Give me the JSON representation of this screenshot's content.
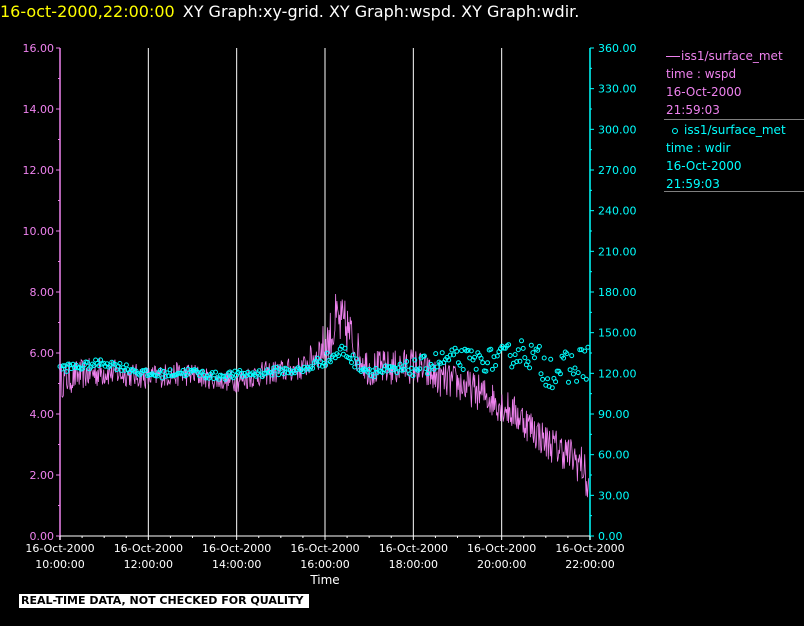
{
  "header": {
    "timestamp": "16-oct-2000,22:00:00",
    "titles": "XY Graph:xy-grid.  XY Graph:wspd.  XY Graph:wdir."
  },
  "legend": [
    {
      "marker": "line",
      "source": "iss1/surface_met",
      "variable": "time : wspd",
      "date": "16-Oct-2000",
      "time": "21:59:03",
      "color": "#ee82ee"
    },
    {
      "marker": "circle",
      "source": "iss1/surface_met",
      "variable": "time : wdir",
      "date": "16-Oct-2000",
      "time": "21:59:03",
      "color": "#00ffff"
    }
  ],
  "disclaimer": "REAL-TIME DATA, NOT CHECKED FOR QUALITY",
  "colors": {
    "left_axis": "#ee82ee",
    "right_axis": "#00ffff",
    "grid": "#ffffff",
    "text": "#ffffff"
  },
  "chart_data": {
    "type": "line",
    "xlabel": "Time",
    "xlim": [
      "16-Oct-2000 10:00:00",
      "16-Oct-2000 22:00:00"
    ],
    "x_ticks": [
      {
        "date": "16-Oct-2000",
        "time": "10:00:00"
      },
      {
        "date": "16-Oct-2000",
        "time": "12:00:00"
      },
      {
        "date": "16-Oct-2000",
        "time": "14:00:00"
      },
      {
        "date": "16-Oct-2000",
        "time": "16:00:00"
      },
      {
        "date": "16-Oct-2000",
        "time": "18:00:00"
      },
      {
        "date": "16-Oct-2000",
        "time": "20:00:00"
      },
      {
        "date": "16-Oct-2000",
        "time": "22:00:00"
      }
    ],
    "vertical_grid": true,
    "y_left": {
      "ylim": [
        0,
        16
      ],
      "ticks": [
        "0.00",
        "2.00",
        "4.00",
        "6.00",
        "8.00",
        "10.00",
        "12.00",
        "14.00",
        "16.00"
      ]
    },
    "y_right": {
      "ylim": [
        0,
        360
      ],
      "ticks": [
        "0.00",
        "30.00",
        "60.00",
        "90.00",
        "120.00",
        "150.00",
        "180.00",
        "210.00",
        "240.00",
        "270.00",
        "300.00",
        "330.00",
        "360.00"
      ]
    },
    "series": [
      {
        "name": "wspd",
        "axis": "left",
        "style": "line",
        "x": [
          "10:00",
          "10:30",
          "11:00",
          "11:30",
          "12:00",
          "12:30",
          "13:00",
          "13:30",
          "14:00",
          "14:30",
          "15:00",
          "15:30",
          "15:50",
          "16:05",
          "16:15",
          "16:30",
          "16:45",
          "17:00",
          "17:30",
          "18:00",
          "18:30",
          "19:00",
          "19:30",
          "20:00",
          "20:30",
          "21:00",
          "21:30",
          "21:50",
          "21:59"
        ],
        "y": [
          5.1,
          5.3,
          5.4,
          5.3,
          5.2,
          5.3,
          5.3,
          5.1,
          5.1,
          5.3,
          5.4,
          5.5,
          6.0,
          6.4,
          7.0,
          6.8,
          6.0,
          5.5,
          5.5,
          5.6,
          5.2,
          5.0,
          4.7,
          4.3,
          3.8,
          3.1,
          2.7,
          2.3,
          1.4
        ],
        "noise": [
          0.6,
          0.5,
          0.5,
          0.4,
          0.4,
          0.4,
          0.4,
          0.3,
          0.4,
          0.4,
          0.4,
          0.4,
          0.6,
          0.9,
          1.0,
          0.9,
          0.7,
          0.6,
          0.6,
          0.6,
          0.6,
          0.6,
          0.6,
          0.6,
          0.6,
          0.6,
          0.6,
          0.7,
          0.7
        ]
      },
      {
        "name": "wdir",
        "axis": "right",
        "style": "circles",
        "x": [
          "10:00",
          "10:30",
          "11:00",
          "11:30",
          "12:00",
          "12:30",
          "13:00",
          "13:30",
          "14:00",
          "14:30",
          "15:00",
          "15:30",
          "15:50",
          "16:10",
          "16:25",
          "16:45",
          "17:00",
          "17:30",
          "18:00",
          "18:30",
          "19:00",
          "19:30",
          "20:00",
          "20:30",
          "21:00",
          "21:30",
          "21:59"
        ],
        "y": [
          124,
          125,
          128,
          124,
          119,
          120,
          121,
          118,
          119,
          120,
          122,
          122,
          128,
          132,
          137,
          126,
          122,
          121,
          124,
          128,
          131,
          129,
          131,
          137,
          124,
          122,
          130
        ],
        "noise": [
          3,
          3,
          3,
          3,
          3,
          3,
          3,
          3,
          3,
          3,
          3,
          3,
          4,
          5,
          5,
          4,
          4,
          5,
          6,
          8,
          8,
          8,
          9,
          10,
          14,
          14,
          14
        ]
      }
    ]
  }
}
